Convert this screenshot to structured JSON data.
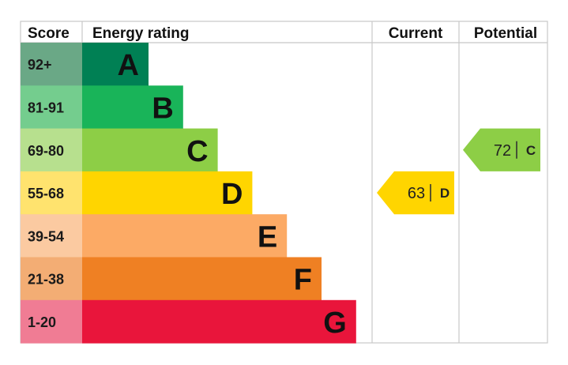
{
  "headers": {
    "score": "Score",
    "rating": "Energy rating",
    "current": "Current",
    "potential": "Potential"
  },
  "chart_data": {
    "type": "bar",
    "categories": [
      "A",
      "B",
      "C",
      "D",
      "E",
      "F",
      "G"
    ],
    "score_ranges": [
      "92+",
      "81-91",
      "69-80",
      "55-68",
      "39-54",
      "21-38",
      "1-20"
    ],
    "colors": [
      "#008054",
      "#19b459",
      "#8dce46",
      "#ffd500",
      "#fcaa65",
      "#ef8023",
      "#e9153b"
    ],
    "score_cell_colors": [
      "#6aa886",
      "#74cd8e",
      "#b7e08e",
      "#ffe36e",
      "#fbcaa1",
      "#f3ad74",
      "#f07c94"
    ],
    "current": {
      "value": 63,
      "rating": "D",
      "color": "#ffd500"
    },
    "potential": {
      "value": 72,
      "rating": "C",
      "color": "#8dce46"
    }
  }
}
